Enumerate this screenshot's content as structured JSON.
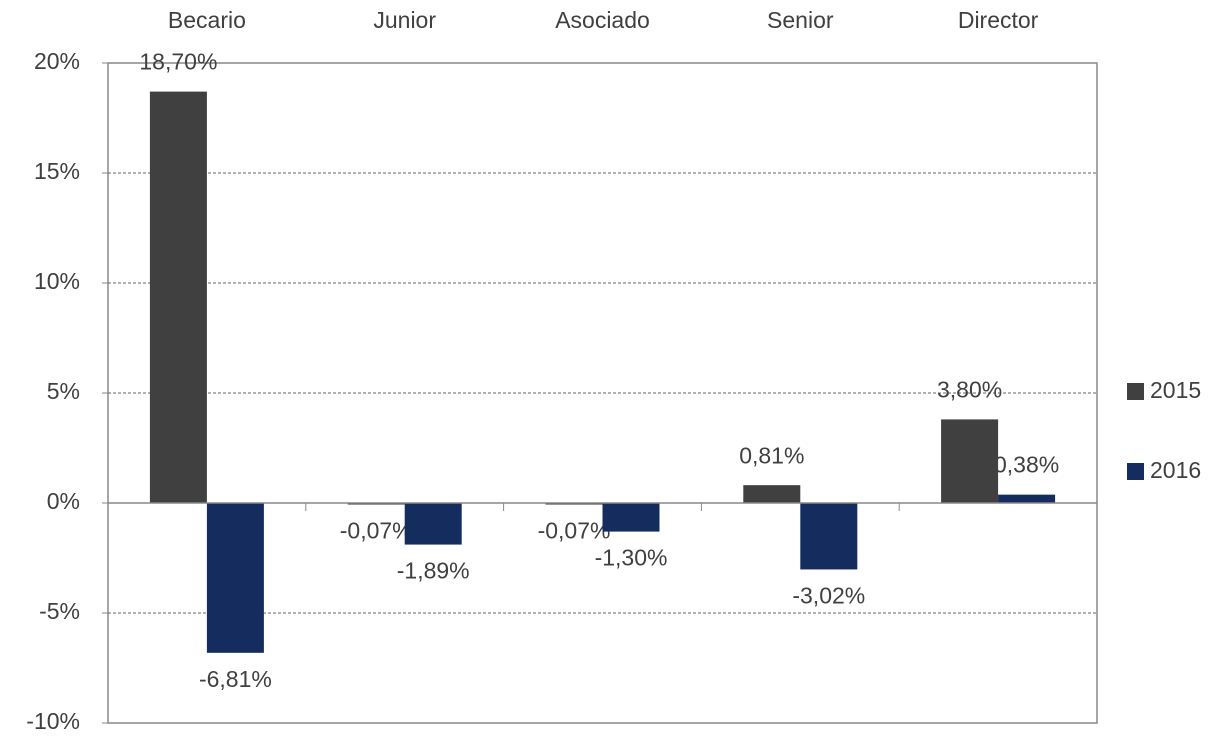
{
  "chart_data": {
    "type": "bar",
    "categories": [
      "Becario",
      "Junior",
      "Asociado",
      "Senior",
      "Director"
    ],
    "series": [
      {
        "name": "2015",
        "color": "#404040",
        "values": [
          18.7,
          -0.07,
          -0.07,
          0.81,
          3.8
        ],
        "value_labels": [
          "18,70%",
          "-0,07%",
          "-0,07%",
          "0,81%",
          "3,80%"
        ]
      },
      {
        "name": "2016",
        "color": "#142d5e",
        "values": [
          -6.81,
          -1.89,
          -1.3,
          -3.02,
          0.38
        ],
        "value_labels": [
          "-6,81%",
          "-1,89%",
          "-1,30%",
          "-3,02%",
          "0,38%"
        ]
      }
    ],
    "ylim": [
      -10,
      20
    ],
    "yticks": [
      {
        "value": -10,
        "label": "-10%"
      },
      {
        "value": -5,
        "label": "-5%"
      },
      {
        "value": 0,
        "label": "0%"
      },
      {
        "value": 5,
        "label": "5%"
      },
      {
        "value": 10,
        "label": "10%"
      },
      {
        "value": 15,
        "label": "15%"
      },
      {
        "value": 20,
        "label": "20%"
      }
    ],
    "grid": true,
    "legend": "right"
  }
}
